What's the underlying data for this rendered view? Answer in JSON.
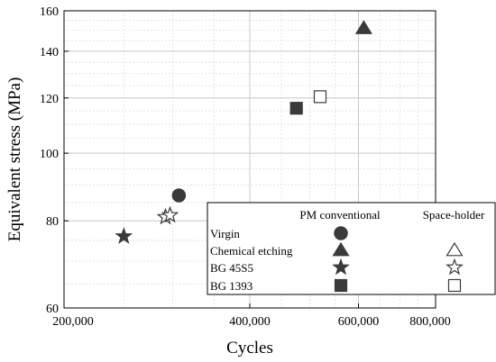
{
  "chart_data": {
    "type": "scatter",
    "xlabel": "Cycles",
    "ylabel": "Equivalent stress (MPa)",
    "x_scale": "log",
    "y_scale": "log",
    "xlim": [
      200000,
      800000
    ],
    "ylim": [
      60,
      160
    ],
    "x_ticks": [
      {
        "value": 200000,
        "label": "200,000"
      },
      {
        "value": 400000,
        "label": "400,000"
      },
      {
        "value": 600000,
        "label": "600,000"
      },
      {
        "value": 800000,
        "label": "800,000"
      }
    ],
    "y_ticks": [
      {
        "value": 60,
        "label": "60"
      },
      {
        "value": 80,
        "label": "80"
      },
      {
        "value": 100,
        "label": "100"
      },
      {
        "value": 120,
        "label": "120"
      },
      {
        "value": 140,
        "label": "140"
      },
      {
        "value": 160,
        "label": "160"
      }
    ],
    "grid": true,
    "legend": {
      "placement": "bottom-right",
      "column_headers": [
        "PM conventional",
        "Space-holder"
      ],
      "rows": [
        "Virgin",
        "Chemical etching",
        "BG 45S5",
        "BG 1393"
      ]
    },
    "series": [
      {
        "name": "Virgin",
        "group": "PM conventional",
        "marker": "circle",
        "fill": "filled",
        "x": [
          307000
        ],
        "y": [
          87
        ]
      },
      {
        "name": "Chemical etching",
        "group": "PM conventional",
        "marker": "triangle",
        "fill": "filled",
        "x": [
          612000
        ],
        "y": [
          151
        ]
      },
      {
        "name": "BG 45S5",
        "group": "PM conventional",
        "marker": "star",
        "fill": "filled",
        "x": [
          250000
        ],
        "y": [
          76
        ]
      },
      {
        "name": "BG 1393",
        "group": "PM conventional",
        "marker": "square",
        "fill": "filled",
        "x": [
          476000
        ],
        "y": [
          116
        ]
      },
      {
        "name": "Chemical etching",
        "group": "Space-holder",
        "marker": "triangle",
        "fill": "open",
        "x": [],
        "y": []
      },
      {
        "name": "BG 45S5",
        "group": "Space-holder",
        "marker": "star",
        "fill": "open",
        "x": [
          292000,
          297000
        ],
        "y": [
          81,
          81.5
        ]
      },
      {
        "name": "BG 1393",
        "group": "Space-holder",
        "marker": "square",
        "fill": "open",
        "x": [
          520000
        ],
        "y": [
          120.5
        ]
      }
    ],
    "colors": {
      "marker": "#3a3a3a",
      "frame": "#000000",
      "grid_major": "#c8c8c8",
      "grid_minor": "#dedede"
    }
  }
}
